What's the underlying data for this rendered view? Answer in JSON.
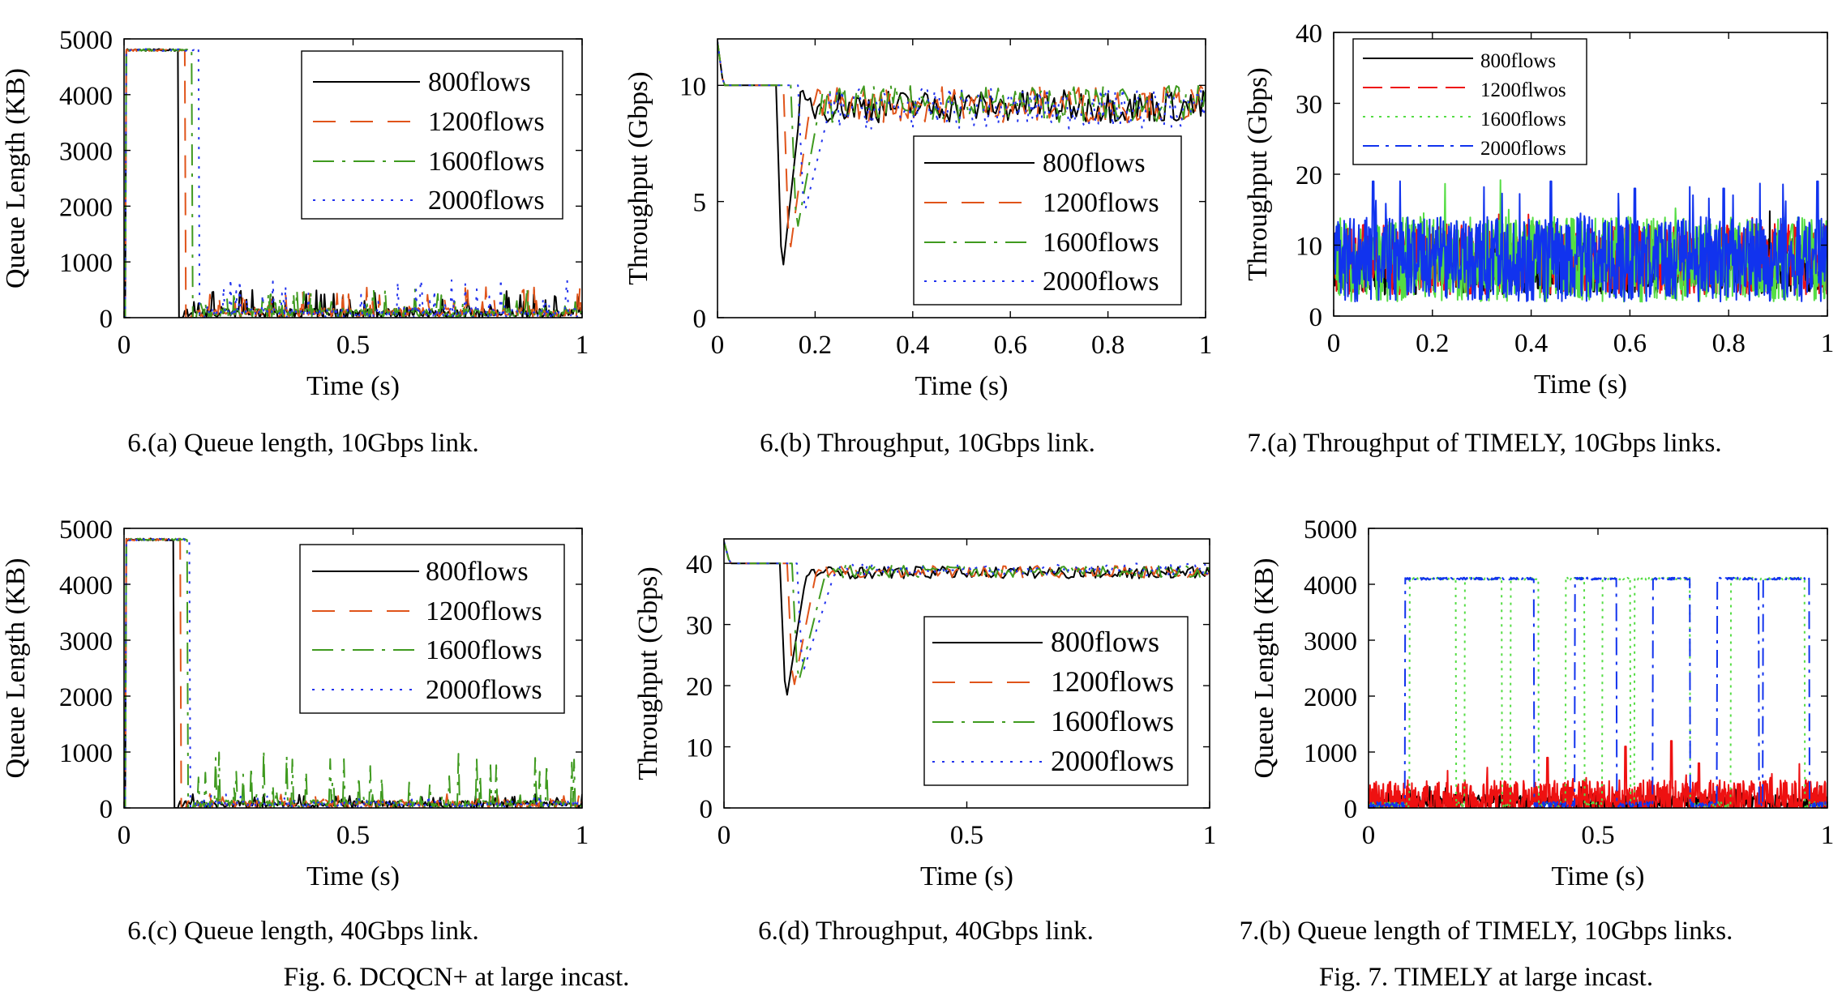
{
  "figure_captions": {
    "fig6": "Fig. 6.  DCQCN+ at large incast.",
    "fig7": "Fig. 7.  TIMELY at large incast."
  },
  "series_styles": [
    {
      "color": "#000000",
      "dash": ""
    },
    {
      "color": "#e0541a",
      "dash": "28 18"
    },
    {
      "color": "#3f9a1f",
      "dash": "26 10 4 10"
    },
    {
      "color": "#2233ee",
      "dash": "3 9"
    }
  ],
  "timely_colors": [
    "#000000",
    "#ee1111",
    "#55dd44",
    "#1133ee"
  ],
  "chart_data": [
    {
      "id": "6a",
      "type": "line",
      "caption": "6.(a) Queue length, 10Gbps link.",
      "xlabel": "Time (s)",
      "ylabel": "Queue Length (KB)",
      "xlim": [
        0,
        1
      ],
      "ylim": [
        0,
        5000
      ],
      "xticks": [
        0,
        0.5,
        1
      ],
      "xtick_labels": [
        "0",
        "0.5",
        "1"
      ],
      "yticks": [
        0,
        1000,
        2000,
        3000,
        4000,
        5000
      ],
      "ytick_labels": [
        "0",
        "1000",
        "2000",
        "3000",
        "4000",
        "5000"
      ],
      "legend": [
        "800flows",
        "1200flows",
        "1600flows",
        "2000flows"
      ],
      "legend_position": "top-right",
      "series": [
        {
          "name": "800flows",
          "plateau": 4800,
          "drop_x": 0.12,
          "steady_mean": 100,
          "steady_max": 500
        },
        {
          "name": "1200flows",
          "plateau": 4800,
          "drop_x": 0.135,
          "steady_mean": 110,
          "steady_max": 550
        },
        {
          "name": "1600flows",
          "plateau": 4800,
          "drop_x": 0.15,
          "steady_mean": 110,
          "steady_max": 550
        },
        {
          "name": "2000flows",
          "plateau": 4800,
          "drop_x": 0.165,
          "steady_mean": 100,
          "steady_max": 700
        }
      ]
    },
    {
      "id": "6b",
      "type": "line",
      "caption": "6.(b) Throughput, 10Gbps link.",
      "xlabel": "Time (s)",
      "ylabel": "Throughput (Gbps)",
      "xlim": [
        0,
        1
      ],
      "ylim": [
        0,
        12
      ],
      "xticks": [
        0,
        0.2,
        0.4,
        0.6,
        0.8,
        1
      ],
      "xtick_labels": [
        "0",
        "0.2",
        "0.4",
        "0.6",
        "0.8",
        "1"
      ],
      "yticks": [
        0,
        5,
        10
      ],
      "ytick_labels": [
        "0",
        "5",
        "10"
      ],
      "legend": [
        "800flows",
        "1200flows",
        "1600flows",
        "2000flows"
      ],
      "legend_position": "lower-right",
      "series": [
        {
          "name": "800flows",
          "initial": 10,
          "dip_x": 0.12,
          "dip_min": 1.7,
          "recover_x": 0.17,
          "steady_mean": 9.1,
          "steady_amp": 0.7
        },
        {
          "name": "1200flows",
          "initial": 10,
          "dip_x": 0.135,
          "dip_min": 2.6,
          "recover_x": 0.19,
          "steady_mean": 9.2,
          "steady_amp": 0.8
        },
        {
          "name": "1600flows",
          "initial": 10,
          "dip_x": 0.15,
          "dip_min": 3.6,
          "recover_x": 0.21,
          "steady_mean": 9.2,
          "steady_amp": 0.8
        },
        {
          "name": "2000flows",
          "initial": 10,
          "dip_x": 0.165,
          "dip_min": 4.4,
          "recover_x": 0.23,
          "steady_mean": 9.0,
          "steady_amp": 0.9
        }
      ]
    },
    {
      "id": "6c",
      "type": "line",
      "caption": "6.(c) Queue length, 40Gbps link.",
      "xlabel": "Time (s)",
      "ylabel": "Queue Length (KB)",
      "xlim": [
        0,
        1
      ],
      "ylim": [
        0,
        5000
      ],
      "xticks": [
        0,
        0.5,
        1
      ],
      "xtick_labels": [
        "0",
        "0.5",
        "1"
      ],
      "yticks": [
        0,
        1000,
        2000,
        3000,
        4000,
        5000
      ],
      "ytick_labels": [
        "0",
        "1000",
        "2000",
        "3000",
        "4000",
        "5000"
      ],
      "legend": [
        "800flows",
        "1200flows",
        "1600flows",
        "2000flows"
      ],
      "legend_position": "top-right",
      "series": [
        {
          "name": "800flows",
          "plateau": 4800,
          "drop_x": 0.11,
          "steady_mean": 80,
          "steady_max": 250
        },
        {
          "name": "1200flows",
          "plateau": 4800,
          "drop_x": 0.125,
          "steady_mean": 90,
          "steady_max": 250
        },
        {
          "name": "1600flows",
          "plateau": 4800,
          "drop_x": 0.14,
          "steady_mean": 90,
          "steady_max": 1100
        },
        {
          "name": "2000flows",
          "plateau": 4800,
          "drop_x": 0.145,
          "steady_mean": 80,
          "steady_max": 250
        }
      ]
    },
    {
      "id": "6d",
      "type": "line",
      "caption": "6.(d) Throughput, 40Gbps link.",
      "xlabel": "Time (s)",
      "ylabel": "Throughput (Gbps)",
      "xlim": [
        0,
        1
      ],
      "ylim": [
        0,
        44
      ],
      "xticks": [
        0,
        0.5,
        1
      ],
      "xtick_labels": [
        "0",
        "0.5",
        "1"
      ],
      "yticks": [
        0,
        10,
        20,
        30,
        40
      ],
      "ytick_labels": [
        "0",
        "10",
        "20",
        "30",
        "40"
      ],
      "legend": [
        "800flows",
        "1200flows",
        "1600flows",
        "2000flows"
      ],
      "legend_position": "lower-right",
      "series": [
        {
          "name": "800flows",
          "initial": 40,
          "dip_x": 0.115,
          "dip_min": 17,
          "recover_x": 0.17,
          "steady_mean": 38.5,
          "steady_amp": 1.0
        },
        {
          "name": "1200flows",
          "initial": 40,
          "dip_x": 0.13,
          "dip_min": 19,
          "recover_x": 0.19,
          "steady_mean": 38.6,
          "steady_amp": 1.0
        },
        {
          "name": "1600flows",
          "initial": 40,
          "dip_x": 0.14,
          "dip_min": 20,
          "recover_x": 0.21,
          "steady_mean": 38.7,
          "steady_amp": 1.0
        },
        {
          "name": "2000flows",
          "initial": 40,
          "dip_x": 0.15,
          "dip_min": 22,
          "recover_x": 0.23,
          "steady_mean": 39.0,
          "steady_amp": 1.0
        }
      ]
    },
    {
      "id": "7a",
      "type": "line",
      "caption": "7.(a) Throughput of TIMELY, 10Gbps links.",
      "xlabel": "Time (s)",
      "ylabel": "Throughput (Gbps)",
      "xlim": [
        0,
        1
      ],
      "ylim": [
        0,
        40
      ],
      "xticks": [
        0,
        0.2,
        0.4,
        0.6,
        0.8,
        1
      ],
      "xtick_labels": [
        "0",
        "0.2",
        "0.4",
        "0.6",
        "0.8",
        "1"
      ],
      "yticks": [
        0,
        10,
        20,
        30,
        40
      ],
      "ytick_labels": [
        "0",
        "10",
        "20",
        "30",
        "40"
      ],
      "legend": [
        "800flows",
        "1200flwos",
        "1600flows",
        "2000flows"
      ],
      "legend_position": "top-left",
      "series": [
        {
          "name": "800flows",
          "mean": 7,
          "amp": 4
        },
        {
          "name": "1200flwos",
          "mean": 8,
          "amp": 5
        },
        {
          "name": "1600flows",
          "mean": 8,
          "amp": 6
        },
        {
          "name": "2000flows",
          "mean": 8,
          "amp": 6,
          "peaks": [
            [
              0.08,
              19
            ],
            [
              0.44,
              19
            ],
            [
              0.61,
              18
            ],
            [
              0.79,
              18
            ],
            [
              0.98,
              19
            ]
          ]
        }
      ]
    },
    {
      "id": "7b",
      "type": "line",
      "caption": "7.(b) Queue length of TIMELY, 10Gbps links.",
      "xlabel": "Time (s)",
      "ylabel": "Queue Length (KB)",
      "xlim": [
        0,
        1
      ],
      "ylim": [
        0,
        5000
      ],
      "xticks": [
        0,
        0.5,
        1
      ],
      "xtick_labels": [
        "0",
        "0.5",
        "1"
      ],
      "yticks": [
        0,
        1000,
        2000,
        3000,
        4000,
        5000
      ],
      "ytick_labels": [
        "0",
        "1000",
        "2000",
        "3000",
        "4000",
        "5000"
      ],
      "legend": [],
      "series": [
        {
          "name": "",
          "mean": 100,
          "amp": 150
        },
        {
          "name": "",
          "mean": 150,
          "amp": 350,
          "peaks": [
            [
              0.39,
              900
            ],
            [
              0.56,
              1100
            ],
            [
              0.66,
              1200
            ],
            [
              0.72,
              800
            ]
          ]
        },
        {
          "name": "",
          "high": 4100,
          "intervals": [
            [
              0.09,
              0.19
            ],
            [
              0.21,
              0.29
            ],
            [
              0.31,
              0.37
            ],
            [
              0.43,
              0.47
            ],
            [
              0.51,
              0.57
            ],
            [
              0.58,
              0.7
            ],
            [
              0.79,
              0.95
            ]
          ]
        },
        {
          "name": "",
          "high": 4100,
          "intervals": [
            [
              0.08,
              0.36
            ],
            [
              0.45,
              0.54
            ],
            [
              0.62,
              0.7
            ],
            [
              0.76,
              0.85
            ],
            [
              0.86,
              0.96
            ]
          ]
        }
      ]
    }
  ]
}
